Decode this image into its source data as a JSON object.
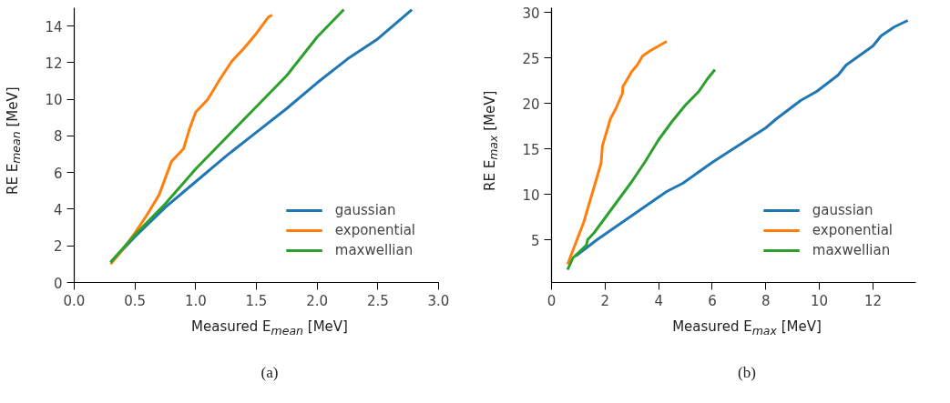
{
  "chart_data": [
    {
      "type": "line",
      "xlabel": "Measured E$_{mean}$ [MeV]",
      "ylabel": "RE E$_{mean}$ [MeV]",
      "annotations": [
        "(a)"
      ],
      "xlim": [
        0,
        3
      ],
      "xticks": [
        {
          "value": 0,
          "label": "0.0"
        },
        0.5,
        {
          "value": 1,
          "label": "1.0"
        },
        1.5,
        {
          "value": 2,
          "label": "2.0"
        },
        2.5,
        {
          "value": 3,
          "label": "3.0"
        }
      ],
      "ylim": [
        0,
        15
      ],
      "yticks": [
        0,
        2,
        4,
        6,
        8,
        10,
        12,
        14
      ],
      "grid": false,
      "legend": "bottom right",
      "series": [
        {
          "name": "gaussian",
          "color": "#1f77b4",
          "x": [
            0.3,
            0.5,
            0.75,
            1.0,
            1.25,
            1.5,
            1.75,
            2.0,
            2.25,
            2.5,
            2.78
          ],
          "values": [
            1.1,
            2.5,
            4.1,
            5.5,
            6.9,
            8.2,
            9.5,
            10.9,
            12.2,
            13.3,
            14.9
          ]
        },
        {
          "name": "exponential",
          "color": "#ff7f0e",
          "x": [
            0.3,
            0.4,
            0.5,
            0.6,
            0.7,
            0.8,
            0.9,
            0.95,
            1.0,
            1.1,
            1.2,
            1.3,
            1.4,
            1.5,
            1.6,
            1.63
          ],
          "values": [
            1.0,
            1.8,
            2.7,
            3.7,
            4.8,
            6.6,
            7.3,
            8.4,
            9.3,
            10.0,
            11.1,
            12.1,
            12.8,
            13.6,
            14.5,
            14.6
          ]
        },
        {
          "name": "maxwellian",
          "color": "#2ca02c",
          "x": [
            0.3,
            0.5,
            0.75,
            1.0,
            1.25,
            1.5,
            1.75,
            2.0,
            2.22
          ],
          "values": [
            1.1,
            2.6,
            4.3,
            6.2,
            7.9,
            9.6,
            11.3,
            13.4,
            14.9
          ]
        }
      ]
    },
    {
      "type": "line",
      "xlabel": "Measured E$_{max}$ [MeV]",
      "ylabel": "RE E$_{max}$ [MeV]",
      "annotations": [
        "(b)"
      ],
      "xlim": [
        0,
        13.6
      ],
      "xticks": [
        0,
        2,
        4,
        6,
        8,
        10,
        12
      ],
      "ylim": [
        0.3,
        30.5
      ],
      "yticks": [
        5,
        10,
        15,
        20,
        25,
        30
      ],
      "grid": false,
      "legend": "bottom right",
      "series": [
        {
          "name": "gaussian",
          "color": "#1f77b4",
          "x": [
            0.9,
            1.7,
            4.3,
            4.9,
            6.0,
            8.0,
            8.4,
            9.3,
            9.9,
            10.7,
            11.0,
            12.0,
            12.3,
            12.8,
            13.3
          ],
          "values": [
            3.2,
            5.0,
            10.3,
            11.2,
            13.5,
            17.3,
            18.3,
            20.3,
            21.3,
            23.1,
            24.2,
            26.3,
            27.4,
            28.4,
            29.1
          ]
        },
        {
          "name": "exponential",
          "color": "#ff7f0e",
          "x": [
            0.6,
            1.2,
            1.85,
            1.9,
            2.2,
            2.4,
            2.65,
            2.66,
            2.9,
            3.0,
            3.2,
            3.4,
            3.7,
            4.0,
            4.3
          ],
          "values": [
            2.3,
            6.9,
            13.4,
            15.3,
            18.3,
            19.4,
            21.1,
            21.8,
            23.0,
            23.5,
            24.2,
            25.2,
            25.8,
            26.3,
            26.8
          ]
        },
        {
          "name": "maxwellian",
          "color": "#2ca02c",
          "x": [
            0.6,
            0.8,
            1.3,
            1.35,
            1.6,
            2.0,
            2.5,
            3.0,
            3.5,
            4.0,
            4.5,
            5.0,
            5.5,
            5.8,
            6.1
          ],
          "values": [
            1.7,
            3.0,
            4.4,
            5.0,
            5.8,
            7.4,
            9.4,
            11.4,
            13.6,
            16.0,
            18.0,
            19.8,
            21.3,
            22.6,
            23.7
          ]
        }
      ]
    }
  ]
}
